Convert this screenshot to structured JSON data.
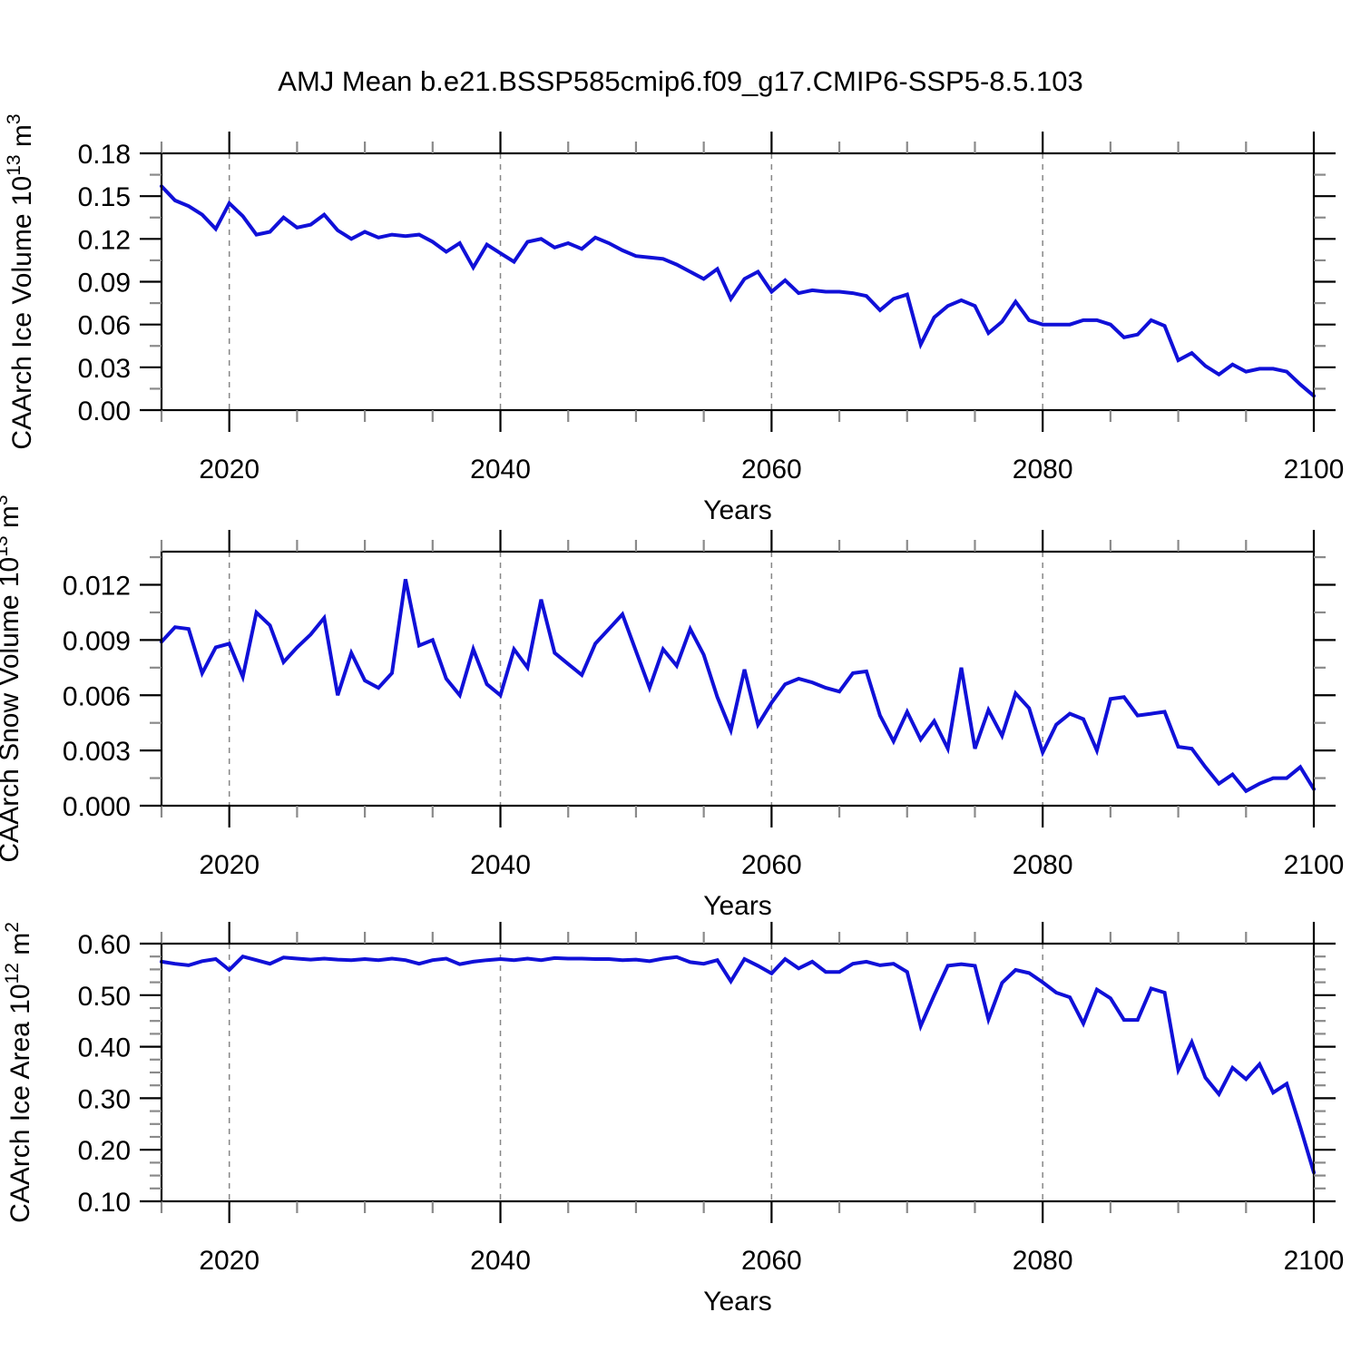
{
  "title": "AMJ Mean b.e21.BSSP585cmip6.f09_g17.CMIP6-SSP5-8.5.103",
  "line_color": "#1010d8",
  "grid_color": "#878787",
  "minor_tick_color": "#8a8a8a",
  "major_tick_color": "#000000",
  "chart_data": [
    {
      "id": "ice-volume",
      "type": "line",
      "title": "CAArch Ice Volume 10^13 m^3",
      "ylabel": {
        "text": "CAArch Ice Volume 10",
        "sup": "13",
        "text2": " m",
        "sup2": "3"
      },
      "xlabel": "Years",
      "x_start": 2015,
      "x_end": 2100,
      "x_step": 1,
      "x_tick_labels": [
        "2020",
        "2040",
        "2060",
        "2080",
        "2100"
      ],
      "x_tick_vals": [
        2020,
        2040,
        2060,
        2080,
        2100
      ],
      "x_minor_step": 5,
      "grid_years": [
        2020,
        2040,
        2060,
        2080
      ],
      "ylim": [
        0,
        0.18
      ],
      "y_tick_vals": [
        0.0,
        0.03,
        0.06,
        0.09,
        0.12,
        0.15,
        0.18
      ],
      "y_tick_labels": [
        "0.00",
        "0.03",
        "0.06",
        "0.09",
        "0.12",
        "0.15",
        "0.18"
      ],
      "y_minor_step": 0.015,
      "values": [
        0.157,
        0.147,
        0.143,
        0.137,
        0.127,
        0.145,
        0.136,
        0.123,
        0.125,
        0.135,
        0.128,
        0.13,
        0.137,
        0.126,
        0.12,
        0.125,
        0.121,
        0.123,
        0.122,
        0.123,
        0.118,
        0.111,
        0.117,
        0.1,
        0.116,
        0.11,
        0.104,
        0.118,
        0.12,
        0.114,
        0.117,
        0.113,
        0.121,
        0.117,
        0.112,
        0.108,
        0.107,
        0.106,
        0.102,
        0.097,
        0.092,
        0.099,
        0.078,
        0.092,
        0.097,
        0.083,
        0.091,
        0.082,
        0.084,
        0.083,
        0.083,
        0.082,
        0.08,
        0.07,
        0.078,
        0.081,
        0.046,
        0.065,
        0.073,
        0.077,
        0.073,
        0.054,
        0.062,
        0.076,
        0.063,
        0.06,
        0.06,
        0.06,
        0.063,
        0.063,
        0.06,
        0.051,
        0.053,
        0.063,
        0.059,
        0.035,
        0.04,
        0.031,
        0.025,
        0.032,
        0.027,
        0.029,
        0.029,
        0.027,
        0.018,
        0.01
      ]
    },
    {
      "id": "snow-volume",
      "type": "line",
      "title": "CAArch Snow Volume 10^13 m^3",
      "ylabel": {
        "text": "CAArch Snow Volume 10",
        "sup": "13",
        "text2": " m",
        "sup2": "3"
      },
      "xlabel": "Years",
      "x_start": 2015,
      "x_end": 2100,
      "x_step": 1,
      "x_tick_labels": [
        "2020",
        "2040",
        "2060",
        "2080",
        "2100"
      ],
      "x_tick_vals": [
        2020,
        2040,
        2060,
        2080,
        2100
      ],
      "x_minor_step": 5,
      "grid_years": [
        2020,
        2040,
        2060,
        2080
      ],
      "ylim": [
        0,
        0.0138
      ],
      "y_tick_vals": [
        0.0,
        0.003,
        0.006,
        0.009,
        0.012
      ],
      "y_tick_labels": [
        "0.000",
        "0.003",
        "0.006",
        "0.009",
        "0.012"
      ],
      "y_minor_step": 0.0015,
      "values": [
        0.0089,
        0.0097,
        0.0096,
        0.0072,
        0.0086,
        0.0088,
        0.007,
        0.0105,
        0.0098,
        0.0078,
        0.0086,
        0.0093,
        0.0102,
        0.006,
        0.0083,
        0.0068,
        0.0064,
        0.0072,
        0.0123,
        0.0087,
        0.009,
        0.0069,
        0.006,
        0.0085,
        0.0066,
        0.006,
        0.0085,
        0.0075,
        0.0112,
        0.0083,
        0.0077,
        0.0071,
        0.0088,
        0.0096,
        0.0104,
        0.0084,
        0.0064,
        0.0085,
        0.0076,
        0.0096,
        0.0082,
        0.0059,
        0.0041,
        0.0074,
        0.0044,
        0.0056,
        0.0066,
        0.0069,
        0.0067,
        0.0064,
        0.0062,
        0.0072,
        0.0073,
        0.0049,
        0.0035,
        0.0051,
        0.0036,
        0.0046,
        0.0031,
        0.0075,
        0.0031,
        0.0052,
        0.0038,
        0.0061,
        0.0053,
        0.0029,
        0.0044,
        0.005,
        0.0047,
        0.003,
        0.0058,
        0.0059,
        0.0049,
        0.005,
        0.0051,
        0.0032,
        0.0031,
        0.0021,
        0.0012,
        0.0017,
        0.0008,
        0.0012,
        0.0015,
        0.0015,
        0.0021,
        0.0009
      ]
    },
    {
      "id": "ice-area",
      "type": "line",
      "title": "CAArch Ice Area 10^12 m^2",
      "ylabel": {
        "text": "CAArch Ice Area 10",
        "sup": "12",
        "text2": " m",
        "sup2": "2"
      },
      "xlabel": "Years",
      "x_start": 2015,
      "x_end": 2100,
      "x_step": 1,
      "x_tick_labels": [
        "2020",
        "2040",
        "2060",
        "2080",
        "2100"
      ],
      "x_tick_vals": [
        2020,
        2040,
        2060,
        2080,
        2100
      ],
      "x_minor_step": 5,
      "grid_years": [
        2020,
        2040,
        2060,
        2080
      ],
      "ylim": [
        0.1,
        0.6
      ],
      "y_tick_vals": [
        0.1,
        0.2,
        0.3,
        0.4,
        0.5,
        0.6
      ],
      "y_tick_labels": [
        "0.10",
        "0.20",
        "0.30",
        "0.40",
        "0.50",
        "0.60"
      ],
      "y_minor_step": 0.025,
      "values": [
        0.565,
        0.561,
        0.558,
        0.566,
        0.57,
        0.549,
        0.575,
        0.568,
        0.561,
        0.573,
        0.571,
        0.569,
        0.571,
        0.569,
        0.568,
        0.57,
        0.568,
        0.571,
        0.568,
        0.561,
        0.568,
        0.571,
        0.56,
        0.565,
        0.568,
        0.57,
        0.568,
        0.571,
        0.568,
        0.572,
        0.571,
        0.571,
        0.57,
        0.57,
        0.568,
        0.569,
        0.566,
        0.571,
        0.574,
        0.564,
        0.561,
        0.568,
        0.527,
        0.57,
        0.557,
        0.542,
        0.57,
        0.552,
        0.565,
        0.545,
        0.545,
        0.561,
        0.565,
        0.558,
        0.561,
        0.545,
        0.44,
        0.5,
        0.557,
        0.56,
        0.557,
        0.453,
        0.524,
        0.549,
        0.543,
        0.525,
        0.505,
        0.496,
        0.445,
        0.511,
        0.494,
        0.452,
        0.452,
        0.513,
        0.505,
        0.355,
        0.409,
        0.34,
        0.308,
        0.359,
        0.337,
        0.366,
        0.311,
        0.328,
        0.244,
        0.156
      ]
    }
  ]
}
